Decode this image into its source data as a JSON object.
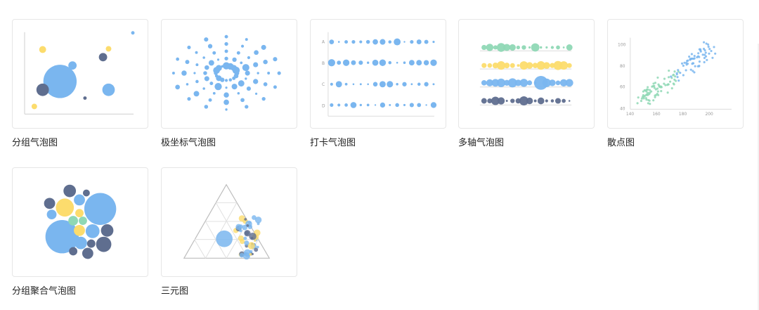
{
  "charts": [
    {
      "id": "grouped-bubble",
      "label": "分组气泡图"
    },
    {
      "id": "polar-bubble",
      "label": "极坐标气泡图"
    },
    {
      "id": "punch-card-bubble",
      "label": "打卡气泡图"
    },
    {
      "id": "multi-axis-bubble",
      "label": "多轴气泡图"
    },
    {
      "id": "scatter",
      "label": "散点图"
    },
    {
      "id": "grouped-packed-bubble",
      "label": "分组聚合气泡图"
    },
    {
      "id": "ternary",
      "label": "三元图"
    }
  ],
  "thumb_text": {
    "punch_card_rows": [
      "A",
      "B",
      "C",
      "D"
    ],
    "scatter_y_ticks": [
      "100",
      "80",
      "60",
      "40"
    ],
    "scatter_x_ticks": [
      "140",
      "160",
      "180",
      "200"
    ]
  },
  "colors": {
    "blue": "#7ab6ef",
    "yellow": "#fcdc6d",
    "navy": "#5f6e8f",
    "green": "#8fd8b5",
    "grid": "#d8d8d8"
  }
}
